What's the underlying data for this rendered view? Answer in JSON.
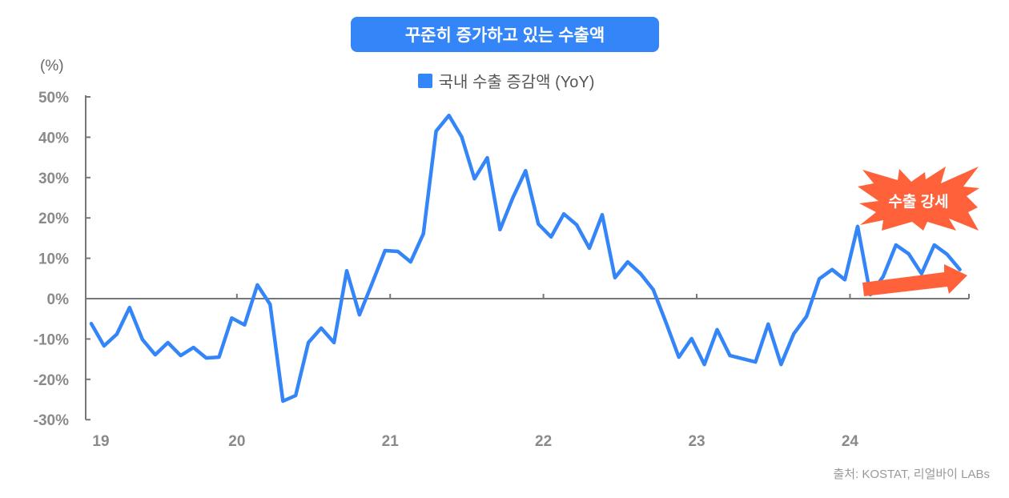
{
  "header": {
    "title": "꾸준히 증가하고 있는 수출액"
  },
  "source": "출처: KOSTAT, 리얼바이 LABs",
  "annotation": {
    "burst_label": "수출 강세",
    "burst_color": "#ff613a",
    "arrow_color": "#ff613a"
  },
  "colors": {
    "series": "#3485f7",
    "axis": "#777777",
    "tick_label": "#8a8a8a"
  },
  "chart_data": {
    "type": "line",
    "title": "꾸준히 증가하고 있는 수출액",
    "ylabel": "(%)",
    "xlabel": "",
    "ylim": [
      -30,
      50
    ],
    "yticks": [
      50,
      40,
      30,
      20,
      10,
      0,
      -10,
      -20,
      -30
    ],
    "ytick_labels": [
      "50%",
      "40%",
      "30%",
      "20%",
      "10%",
      "0%",
      "-10%",
      "-20%",
      "-30%"
    ],
    "xtick_labels": [
      "19",
      "20",
      "21",
      "22",
      "23",
      "24"
    ],
    "x_start": "2019-01",
    "x_end": "2024-09",
    "frequency": "monthly",
    "grid": false,
    "legend_placement": "top-center",
    "series": [
      {
        "name": "국내 수출 증감액 (YoY)",
        "values": [
          -6.2,
          -11.7,
          -8.8,
          -2.2,
          -10.1,
          -13.9,
          -10.9,
          -14.1,
          -12.1,
          -14.7,
          -14.5,
          -4.8,
          -6.5,
          3.4,
          -1.4,
          -25.4,
          -24.0,
          -10.9,
          -7.3,
          -10.9,
          6.9,
          -4.0,
          3.9,
          11.9,
          11.7,
          9.1,
          16.1,
          41.5,
          45.4,
          40.1,
          29.7,
          34.9,
          17.1,
          25.0,
          31.7,
          18.5,
          15.3,
          21.0,
          18.3,
          12.5,
          20.8,
          5.2,
          9.1,
          6.2,
          2.2,
          -6.0,
          -14.5,
          -9.9,
          -16.3,
          -7.7,
          -14.1,
          -14.9,
          -15.7,
          -6.3,
          -16.3,
          -8.7,
          -4.4,
          4.9,
          7.2,
          4.7,
          17.9,
          1.0,
          5.5,
          13.3,
          11.1,
          6.2,
          13.3,
          11.0,
          7.2
        ]
      }
    ]
  }
}
